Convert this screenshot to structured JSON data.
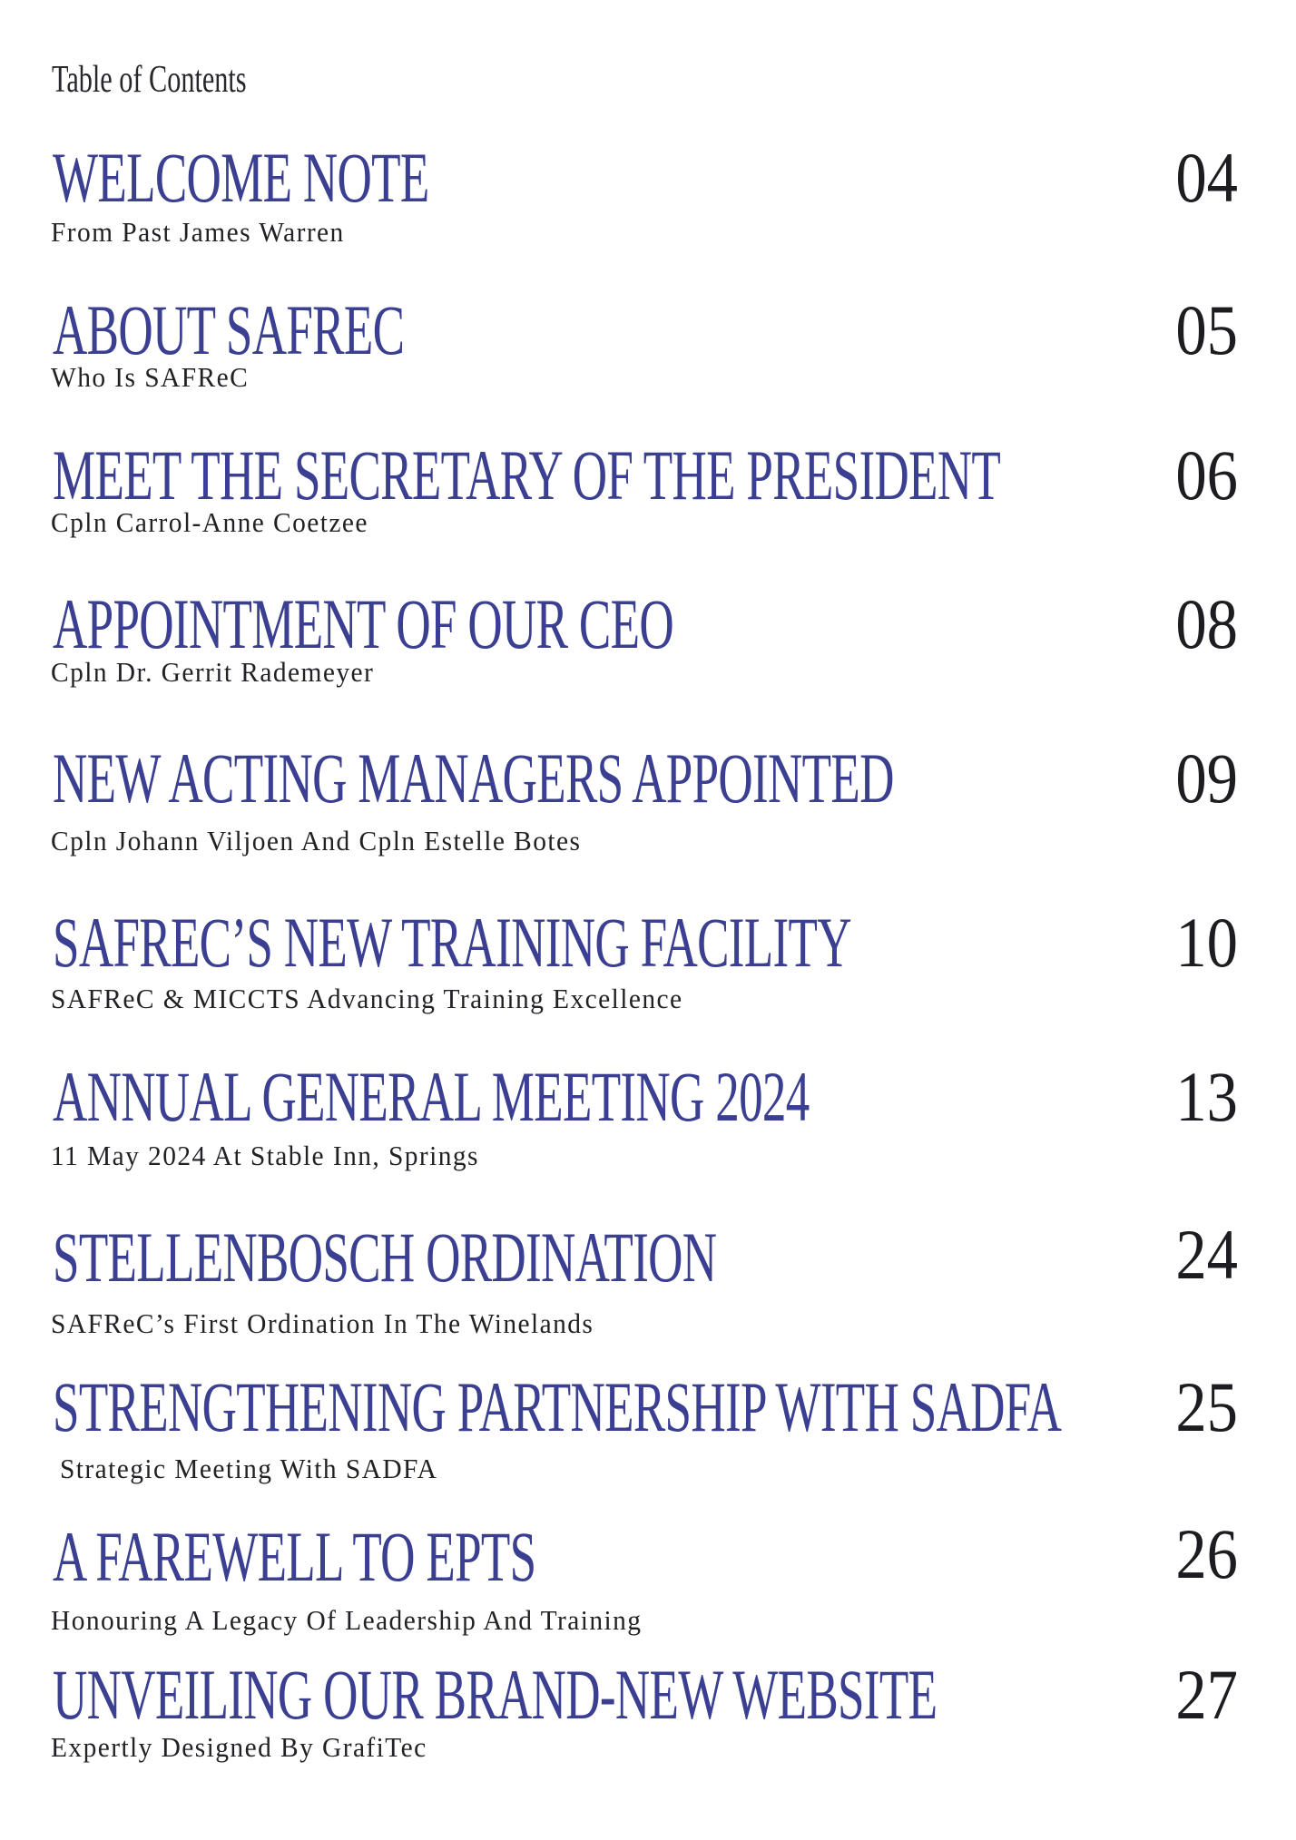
{
  "page": {
    "title": "Table of Contents"
  },
  "colors": {
    "title_blue": "#3b3f92",
    "text_black": "#222226",
    "page_number_black": "#1d1d21",
    "background": "#ffffff"
  },
  "toc": {
    "entries": [
      {
        "title": "WELCOME NOTE",
        "subtitle": "From Past James Warren",
        "page": "04"
      },
      {
        "title": "ABOUT SAFREC",
        "subtitle": "Who Is SAFReC",
        "page": "05"
      },
      {
        "title": "MEET THE SECRETARY OF THE PRESIDENT",
        "subtitle": "Cpln Carrol-Anne Coetzee",
        "page": "06"
      },
      {
        "title": "APPOINTMENT OF OUR CEO",
        "subtitle": "Cpln Dr. Gerrit Rademeyer",
        "page": "08"
      },
      {
        "title": "NEW ACTING MANAGERS APPOINTED",
        "subtitle": "Cpln Johann Viljoen And Cpln Estelle Botes",
        "page": "09"
      },
      {
        "title": "SAFREC’S NEW TRAINING FACILITY",
        "subtitle": "SAFReC & MICCTS Advancing Training Excellence",
        "page": "10"
      },
      {
        "title": "ANNUAL GENERAL MEETING 2024",
        "subtitle": "11 May 2024 At Stable Inn, Springs",
        "page": "13"
      },
      {
        "title": "STELLENBOSCH ORDINATION",
        "subtitle": "SAFReC’s First Ordination In The Winelands",
        "page": "24"
      },
      {
        "title": "STRENGTHENING PARTNERSHIP WITH SADFA",
        "subtitle": "Strategic Meeting With SADFA",
        "page": "25"
      },
      {
        "title": "A FAREWELL TO EPTS",
        "subtitle": "Honouring A Legacy Of Leadership And Training",
        "page": "26"
      },
      {
        "title": "UNVEILING OUR BRAND-NEW WEBSITE",
        "subtitle": "Expertly Designed By GrafiTec",
        "page": "27"
      }
    ]
  }
}
